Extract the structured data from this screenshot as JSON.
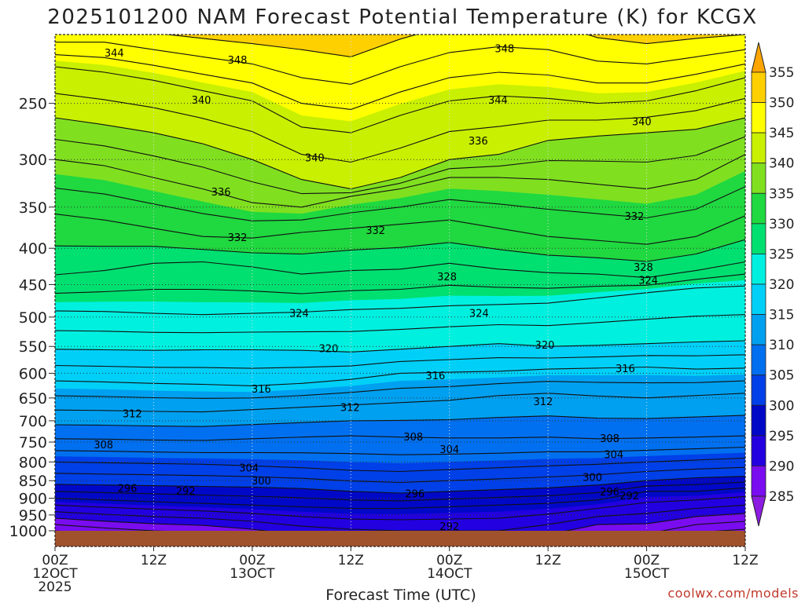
{
  "chart_data": {
    "type": "heatmap",
    "title": "2025101200 NAM Forecast Potential Temperature (K) for KCGX",
    "xlabel": "Forecast Time (UTC)",
    "ylabel": "",
    "y_axis": "pressure (hPa), inverted",
    "ylim": [
      1000,
      200
    ],
    "y_ticks": [
      1000,
      950,
      900,
      850,
      800,
      750,
      700,
      650,
      600,
      550,
      500,
      450,
      400,
      350,
      300,
      250
    ],
    "x_axis": "forecast hour",
    "xlim": [
      0,
      84
    ],
    "x_ticks": [
      {
        "hour": 0,
        "lines": [
          "00Z",
          "12OCT",
          "2025"
        ]
      },
      {
        "hour": 12,
        "lines": [
          "12Z"
        ]
      },
      {
        "hour": 24,
        "lines": [
          "00Z",
          "13OCT"
        ]
      },
      {
        "hour": 36,
        "lines": [
          "12Z"
        ]
      },
      {
        "hour": 48,
        "lines": [
          "00Z",
          "14OCT"
        ]
      },
      {
        "hour": 60,
        "lines": [
          "12Z"
        ]
      },
      {
        "hour": 72,
        "lines": [
          "00Z",
          "15OCT"
        ]
      },
      {
        "hour": 84,
        "lines": [
          "12Z"
        ]
      }
    ],
    "grid": true,
    "ground_color": "#a0522d",
    "colorbar": {
      "unit": "K",
      "position": "right",
      "extend": "both",
      "levels": [
        285,
        290,
        295,
        300,
        305,
        310,
        315,
        320,
        325,
        330,
        335,
        340,
        345,
        350,
        355
      ],
      "colors": [
        "#8c1de0",
        "#7a0cf0",
        "#2200e0",
        "#0008c8",
        "#0040e8",
        "#0070f0",
        "#00a0f0",
        "#00d0f8",
        "#00f0e0",
        "#00e070",
        "#20d840",
        "#80e020",
        "#c8f000",
        "#ffff00",
        "#ffd000",
        "#ffa500"
      ],
      "tick_labels": [
        "355",
        "350",
        "345",
        "340",
        "335",
        "330",
        "325",
        "320",
        "315",
        "310",
        "305",
        "300",
        "295",
        "290",
        "285"
      ]
    },
    "level_profile_times": [
      0,
      6,
      12,
      18,
      24,
      30,
      36,
      42,
      48,
      54,
      60,
      66,
      72,
      78,
      84
    ],
    "isentropes": [
      {
        "theta": 292,
        "pressure": [
          940,
          948,
          955,
          960,
          970,
          985,
          995,
          1000,
          1000,
          1000,
          980,
          955,
          945,
          930,
          920
        ]
      },
      {
        "theta": 296,
        "pressure": [
          900,
          905,
          910,
          915,
          920,
          925,
          930,
          930,
          925,
          920,
          915,
          905,
          880,
          880,
          870
        ]
      },
      {
        "theta": 300,
        "pressure": [
          860,
          862,
          864,
          866,
          868,
          872,
          880,
          885,
          880,
          875,
          870,
          862,
          850,
          842,
          838
        ]
      },
      {
        "theta": 304,
        "pressure": [
          800,
          802,
          804,
          806,
          810,
          815,
          822,
          825,
          820,
          815,
          810,
          806,
          800,
          795,
          790
        ]
      },
      {
        "theta": 308,
        "pressure": [
          742,
          743,
          745,
          746,
          742,
          738,
          735,
          738,
          740,
          740,
          738,
          742,
          740,
          738,
          735
        ]
      },
      {
        "theta": 312,
        "pressure": [
          676,
          677,
          679,
          680,
          675,
          670,
          665,
          660,
          655,
          645,
          640,
          646,
          650,
          645,
          640
        ]
      },
      {
        "theta": 316,
        "pressure": [
          615,
          617,
          620,
          622,
          625,
          620,
          612,
          600,
          598,
          596,
          592,
          590,
          588,
          592,
          590
        ]
      },
      {
        "theta": 320,
        "pressure": [
          555,
          556,
          557,
          556,
          556,
          557,
          560,
          555,
          550,
          545,
          550,
          548,
          545,
          542,
          540
        ]
      },
      {
        "theta": 324,
        "pressure": [
          490,
          491,
          494,
          496,
          494,
          492,
          488,
          486,
          482,
          480,
          478,
          470,
          462,
          455,
          452
        ]
      },
      {
        "theta": 328,
        "pressure": [
          436,
          430,
          420,
          418,
          425,
          435,
          430,
          428,
          420,
          428,
          433,
          435,
          440,
          430,
          418
        ]
      },
      {
        "theta": 332,
        "pressure": [
          358,
          365,
          375,
          385,
          387,
          380,
          375,
          370,
          365,
          375,
          385,
          390,
          395,
          385,
          360
        ]
      },
      {
        "theta": 336,
        "pressure": [
          300,
          306,
          318,
          330,
          345,
          350,
          338,
          330,
          318,
          318,
          320,
          325,
          330,
          320,
          295
        ]
      },
      {
        "theta": 340,
        "pressure": [
          262,
          268,
          275,
          285,
          300,
          320,
          330,
          318,
          300,
          295,
          282,
          278,
          275,
          272,
          262
        ]
      },
      {
        "theta": 344,
        "pressure": [
          222,
          226,
          232,
          240,
          248,
          270,
          275,
          260,
          248,
          244,
          246,
          250,
          248,
          240,
          230
        ]
      },
      {
        "theta": 348,
        "pressure": [
          205,
          205,
          210,
          215,
          220,
          230,
          235,
          222,
          212,
          208,
          210,
          218,
          220,
          215,
          210
        ]
      }
    ],
    "contour_labels": [
      {
        "text": "344",
        "hour": 7.2,
        "pressure": 212
      },
      {
        "text": "348",
        "hour": 22.2,
        "pressure": 217
      },
      {
        "text": "348",
        "hour": 54.7,
        "pressure": 209
      },
      {
        "text": "340",
        "hour": 17.8,
        "pressure": 247
      },
      {
        "text": "344",
        "hour": 53.9,
        "pressure": 247
      },
      {
        "text": "340",
        "hour": 71.4,
        "pressure": 265
      },
      {
        "text": "336",
        "hour": 51.5,
        "pressure": 282
      },
      {
        "text": "340",
        "hour": 31.6,
        "pressure": 298
      },
      {
        "text": "336",
        "hour": 20.2,
        "pressure": 333
      },
      {
        "text": "332",
        "hour": 70.5,
        "pressure": 360
      },
      {
        "text": "332",
        "hour": 22.2,
        "pressure": 386
      },
      {
        "text": "332",
        "hour": 39.0,
        "pressure": 377
      },
      {
        "text": "328",
        "hour": 71.6,
        "pressure": 425
      },
      {
        "text": "328",
        "hour": 47.7,
        "pressure": 438
      },
      {
        "text": "324",
        "hour": 72.2,
        "pressure": 443
      },
      {
        "text": "324",
        "hour": 29.7,
        "pressure": 493
      },
      {
        "text": "324",
        "hour": 51.6,
        "pressure": 493
      },
      {
        "text": "320",
        "hour": 33.3,
        "pressure": 553
      },
      {
        "text": "320",
        "hour": 59.6,
        "pressure": 547
      },
      {
        "text": "316",
        "hour": 46.3,
        "pressure": 604
      },
      {
        "text": "316",
        "hour": 69.4,
        "pressure": 590
      },
      {
        "text": "316",
        "hour": 25.1,
        "pressure": 631
      },
      {
        "text": "312",
        "hour": 59.4,
        "pressure": 657
      },
      {
        "text": "312",
        "hour": 35.9,
        "pressure": 670
      },
      {
        "text": "312",
        "hour": 9.4,
        "pressure": 683
      },
      {
        "text": "308",
        "hour": 43.6,
        "pressure": 737
      },
      {
        "text": "308",
        "hour": 67.5,
        "pressure": 740
      },
      {
        "text": "308",
        "hour": 5.9,
        "pressure": 756
      },
      {
        "text": "304",
        "hour": 48.0,
        "pressure": 767
      },
      {
        "text": "304",
        "hour": 68.0,
        "pressure": 780
      },
      {
        "text": "304",
        "hour": 23.6,
        "pressure": 815
      },
      {
        "text": "300",
        "hour": 65.4,
        "pressure": 840
      },
      {
        "text": "300",
        "hour": 25.1,
        "pressure": 850
      },
      {
        "text": "296",
        "hour": 8.8,
        "pressure": 870
      },
      {
        "text": "296",
        "hour": 67.5,
        "pressure": 880
      },
      {
        "text": "292",
        "hour": 15.9,
        "pressure": 878
      },
      {
        "text": "292",
        "hour": 69.9,
        "pressure": 892
      },
      {
        "text": "296",
        "hour": 43.8,
        "pressure": 886
      },
      {
        "text": "292",
        "hour": 48.0,
        "pressure": 985
      }
    ]
  },
  "credit": "coolwx.com/models"
}
